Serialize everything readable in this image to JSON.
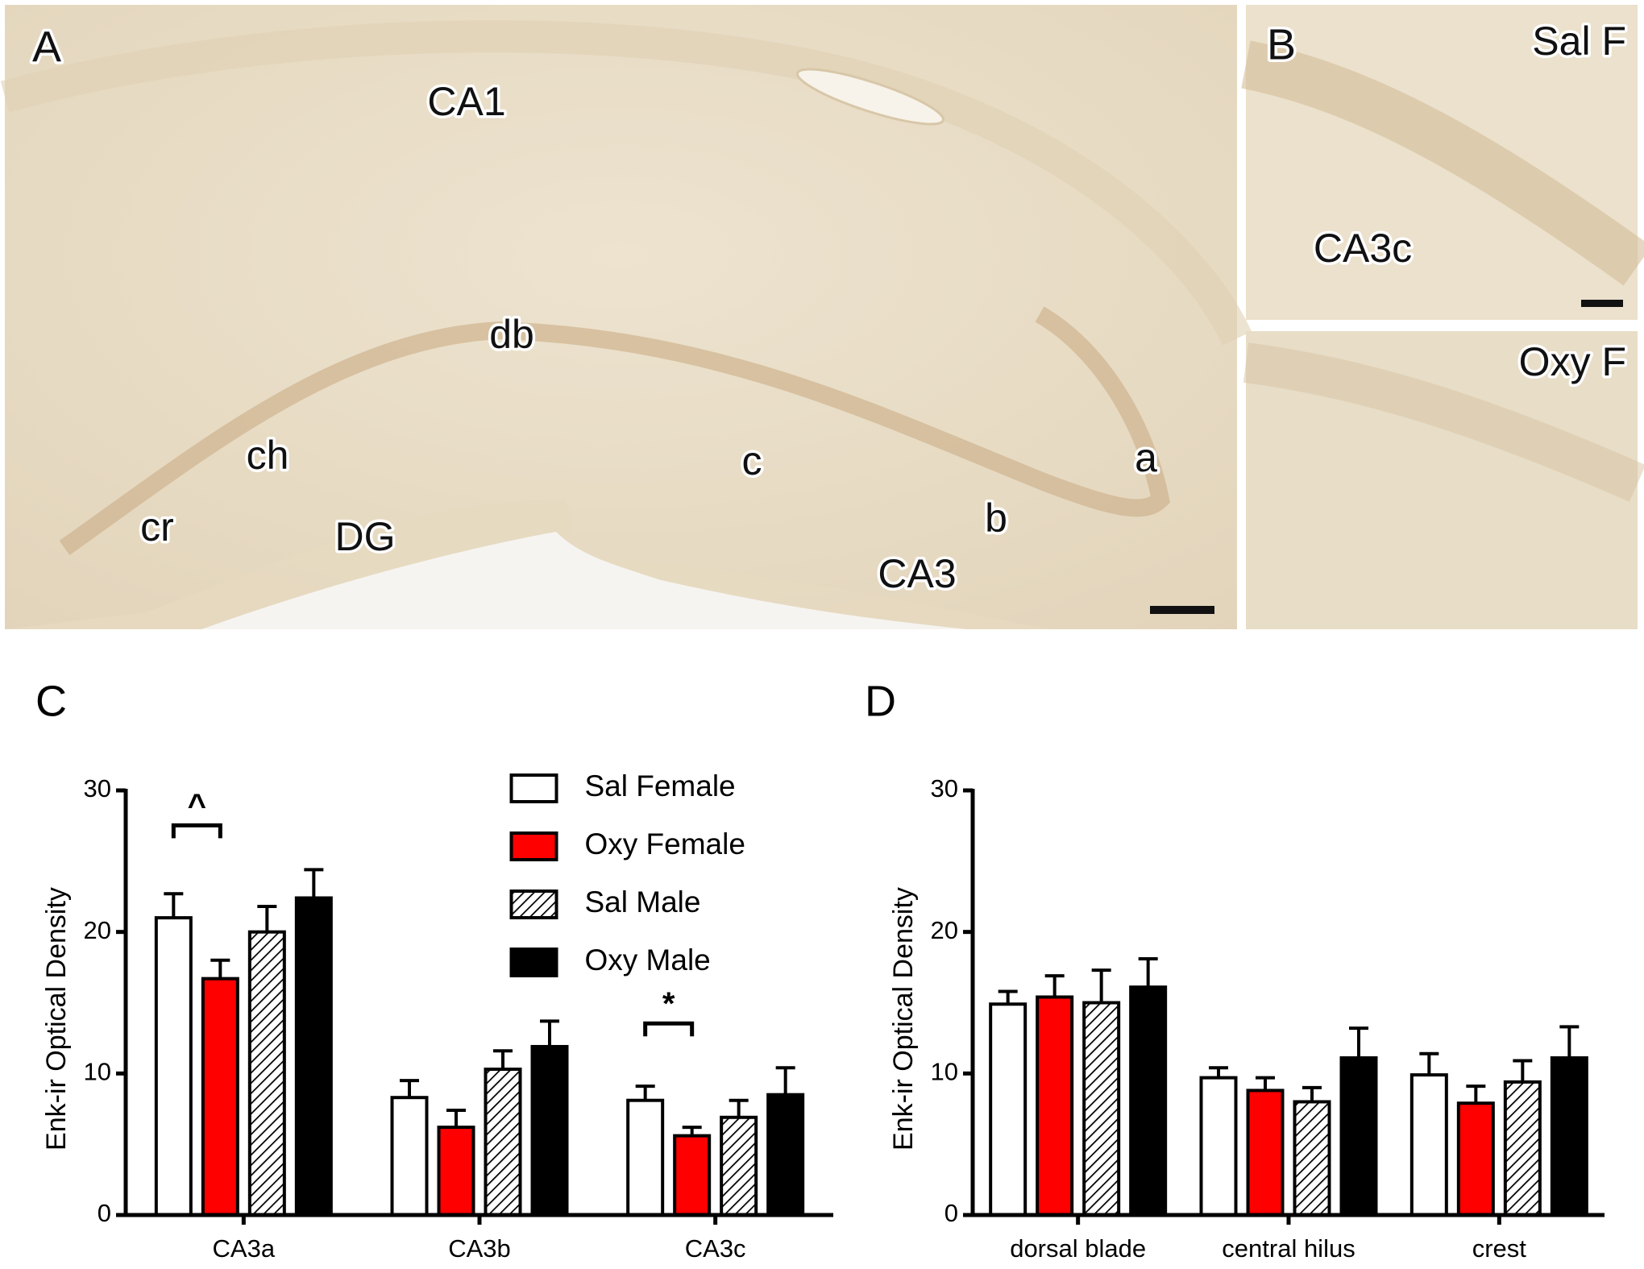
{
  "figure": {
    "panel_labels": [
      "A",
      "B",
      "C",
      "D"
    ],
    "micrograph_labels": [
      "CA1",
      "db",
      "ch",
      "cr",
      "DG",
      "c",
      "a",
      "b",
      "CA3"
    ],
    "inset_labels": [
      "Sal F",
      "CA3c",
      "Oxy F"
    ]
  },
  "chart_data": [
    {
      "type": "bar",
      "y_label": "Enk-ir Optical Density",
      "categories": [
        "CA3a",
        "CA3b",
        "CA3c"
      ],
      "series": [
        {
          "name": "Sal Female",
          "color": "#ffffff",
          "values": [
            21.0,
            8.3,
            8.1
          ],
          "errors": [
            1.7,
            1.2,
            1.0
          ]
        },
        {
          "name": "Oxy Female",
          "color": "#ff0000",
          "values": [
            16.7,
            6.2,
            5.6
          ],
          "errors": [
            1.3,
            1.2,
            0.6
          ]
        },
        {
          "name": "Sal Male",
          "color": "#000000",
          "hatch": true,
          "values": [
            20.0,
            10.3,
            6.9
          ],
          "errors": [
            1.8,
            1.3,
            1.2
          ]
        },
        {
          "name": "Oxy Male",
          "color": "#000000",
          "values": [
            22.4,
            11.9,
            8.5
          ],
          "errors": [
            2.0,
            1.8,
            1.9
          ]
        }
      ],
      "annotations": [
        {
          "text": "^",
          "category": 0,
          "series": [
            0,
            1
          ]
        },
        {
          "text": "*",
          "category": 2,
          "series": [
            0,
            1
          ]
        }
      ],
      "ylim": [
        0,
        30
      ],
      "yticks": [
        0,
        10,
        20,
        30
      ],
      "legend": "top-right"
    },
    {
      "type": "bar",
      "y_label": "Enk-ir Optical Density",
      "categories": [
        "dorsal blade",
        "central hilus",
        "crest"
      ],
      "series": [
        {
          "color": "#ffffff",
          "values": [
            14.9,
            9.7,
            9.9
          ],
          "errors": [
            0.9,
            0.7,
            1.5
          ]
        },
        {
          "color": "#ff0000",
          "values": [
            15.4,
            8.8,
            7.9
          ],
          "errors": [
            1.5,
            0.9,
            1.2
          ]
        },
        {
          "color": "#000000",
          "hatch": true,
          "values": [
            15.0,
            8.0,
            9.4
          ],
          "errors": [
            2.3,
            1.0,
            1.5
          ]
        },
        {
          "color": "#000000",
          "values": [
            16.1,
            11.1,
            11.1
          ],
          "errors": [
            2.0,
            2.1,
            2.2
          ]
        }
      ],
      "ylim": [
        0,
        30
      ],
      "yticks": [
        0,
        10,
        20,
        30
      ]
    }
  ]
}
